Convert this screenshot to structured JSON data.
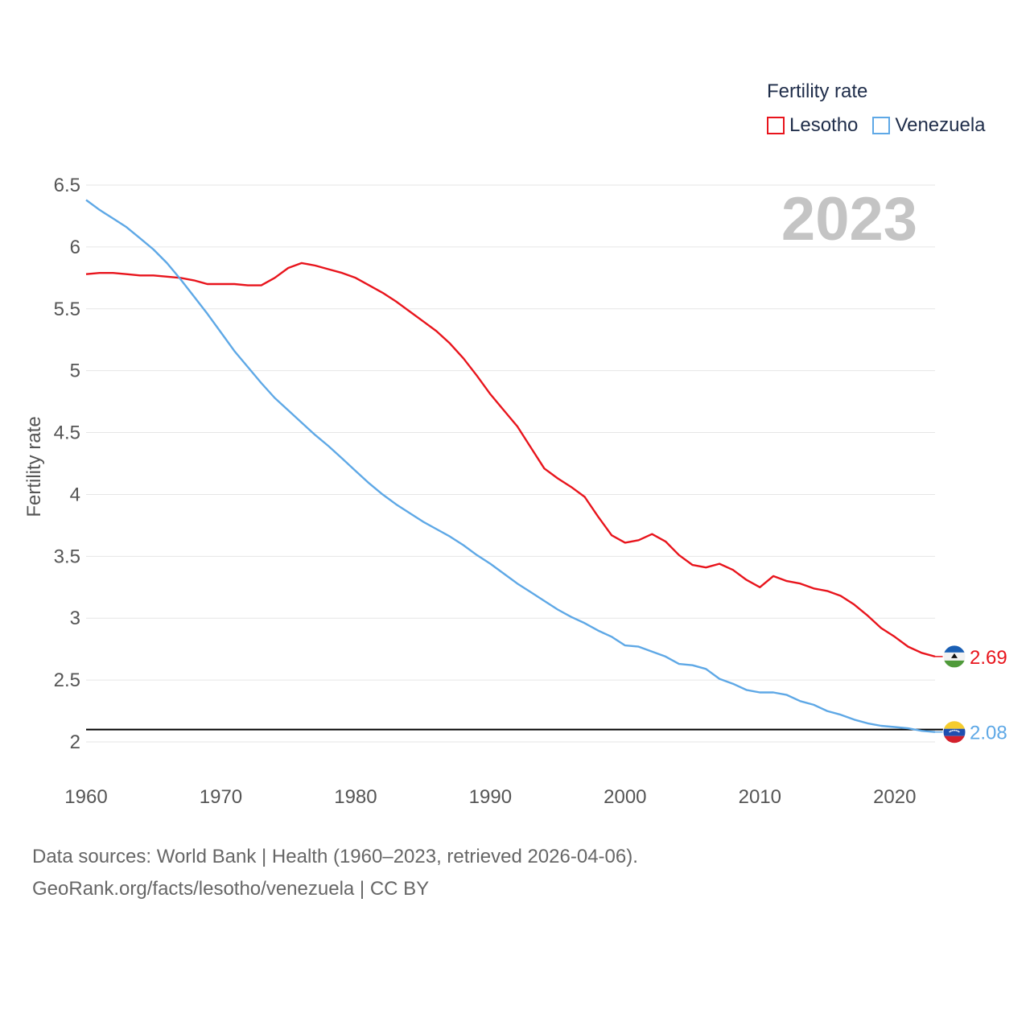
{
  "legend": {
    "title": "Fertility rate",
    "items": [
      {
        "label": "Lesotho",
        "color": "#e8141c"
      },
      {
        "label": "Venezuela",
        "color": "#5ea8e6"
      }
    ]
  },
  "footer": {
    "line1": "Data sources: World Bank | Health (1960–2023, retrieved 2026-04-06).",
    "line2": "GeoRank.org/facts/lesotho/venezuela | CC BY"
  },
  "chart_data": {
    "type": "line",
    "title": "",
    "year_label": "2023",
    "xlabel": "",
    "ylabel": "Fertility rate",
    "xlim": [
      1960,
      2023
    ],
    "ylim": [
      2,
      6.5
    ],
    "x_ticks": [
      1960,
      1970,
      1980,
      1990,
      2000,
      2010,
      2020
    ],
    "y_ticks": [
      {
        "value": 2,
        "label": "2"
      },
      {
        "value": 2.5,
        "label": "2.5"
      },
      {
        "value": 3,
        "label": "3"
      },
      {
        "value": 3.5,
        "label": "3.5"
      },
      {
        "value": 4,
        "label": "4"
      },
      {
        "value": 4.5,
        "label": "4.5"
      },
      {
        "value": 5,
        "label": "5"
      },
      {
        "value": 5.5,
        "label": "5.5"
      },
      {
        "value": 6,
        "label": "6"
      },
      {
        "value": 6.5,
        "label": "6.5"
      }
    ],
    "reference_line": {
      "value": 2.1,
      "color": "#000000"
    },
    "x": [
      1960,
      1961,
      1962,
      1963,
      1964,
      1965,
      1966,
      1967,
      1968,
      1969,
      1970,
      1971,
      1972,
      1973,
      1974,
      1975,
      1976,
      1977,
      1978,
      1979,
      1980,
      1981,
      1982,
      1983,
      1984,
      1985,
      1986,
      1987,
      1988,
      1989,
      1990,
      1991,
      1992,
      1993,
      1994,
      1995,
      1996,
      1997,
      1998,
      1999,
      2000,
      2001,
      2002,
      2003,
      2004,
      2005,
      2006,
      2007,
      2008,
      2009,
      2010,
      2011,
      2012,
      2013,
      2014,
      2015,
      2016,
      2017,
      2018,
      2019,
      2020,
      2021,
      2022,
      2023
    ],
    "series": [
      {
        "name": "Lesotho",
        "color": "#e8141c",
        "end_label": "2.69",
        "values": [
          5.78,
          5.79,
          5.79,
          5.78,
          5.77,
          5.77,
          5.76,
          5.75,
          5.73,
          5.7,
          5.7,
          5.7,
          5.69,
          5.69,
          5.75,
          5.83,
          5.87,
          5.85,
          5.82,
          5.79,
          5.75,
          5.69,
          5.63,
          5.56,
          5.48,
          5.4,
          5.32,
          5.22,
          5.1,
          4.96,
          4.81,
          4.68,
          4.55,
          4.38,
          4.21,
          4.13,
          4.06,
          3.98,
          3.82,
          3.67,
          3.61,
          3.63,
          3.68,
          3.62,
          3.51,
          3.43,
          3.41,
          3.44,
          3.39,
          3.31,
          3.25,
          3.34,
          3.3,
          3.28,
          3.24,
          3.22,
          3.18,
          3.11,
          3.02,
          2.92,
          2.85,
          2.77,
          2.72,
          2.69
        ]
      },
      {
        "name": "Venezuela",
        "color": "#5ea8e6",
        "end_label": "2.08",
        "values": [
          6.38,
          6.3,
          6.23,
          6.16,
          6.07,
          5.98,
          5.87,
          5.74,
          5.6,
          5.46,
          5.31,
          5.16,
          5.03,
          4.9,
          4.78,
          4.68,
          4.58,
          4.48,
          4.39,
          4.29,
          4.19,
          4.09,
          4.0,
          3.92,
          3.85,
          3.78,
          3.72,
          3.66,
          3.59,
          3.51,
          3.44,
          3.36,
          3.28,
          3.21,
          3.14,
          3.07,
          3.01,
          2.96,
          2.9,
          2.85,
          2.78,
          2.77,
          2.73,
          2.69,
          2.63,
          2.62,
          2.59,
          2.51,
          2.47,
          2.42,
          2.4,
          2.4,
          2.38,
          2.33,
          2.3,
          2.25,
          2.22,
          2.18,
          2.15,
          2.13,
          2.12,
          2.11,
          2.09,
          2.08
        ]
      }
    ]
  }
}
